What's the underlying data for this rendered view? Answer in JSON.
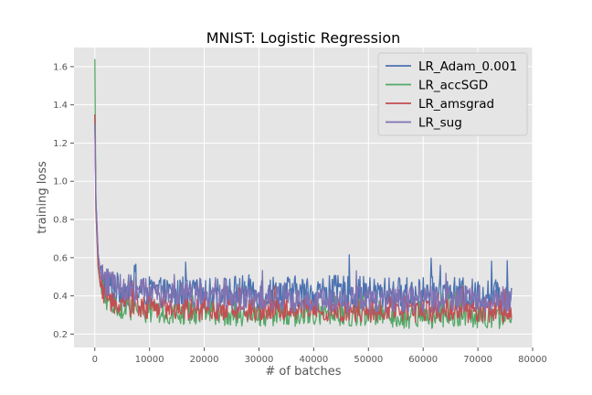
{
  "chart_data": {
    "type": "line",
    "title": "MNIST: Logistic Regression",
    "xlabel": "# of batches",
    "ylabel": "training loss",
    "xlim": [
      -3800,
      80000
    ],
    "ylim": [
      0.13,
      1.7
    ],
    "xticks": [
      0,
      10000,
      20000,
      30000,
      40000,
      50000,
      60000,
      70000,
      80000
    ],
    "yticks": [
      0.2,
      0.4,
      0.6,
      0.8,
      1.0,
      1.2,
      1.4,
      1.6
    ],
    "xtick_labels": [
      "0",
      "10000",
      "20000",
      "30000",
      "40000",
      "50000",
      "60000",
      "70000",
      "80000"
    ],
    "ytick_labels": [
      "0.2",
      "0.4",
      "0.6",
      "0.8",
      "1.0",
      "1.2",
      "1.4",
      "1.6"
    ],
    "grid": true,
    "legend_position": "top-right",
    "background": "#e5e5e5",
    "series": [
      {
        "name": "LR_Adam_0.001",
        "color": "#4c72b0",
        "x": [
          0,
          200,
          600,
          1000,
          2000,
          3000,
          5000,
          8000,
          10000,
          15000,
          20000,
          25000,
          30000,
          35000,
          40000,
          45000,
          50000,
          55000,
          60000,
          65000,
          70000,
          75000,
          76200
        ],
        "y": [
          1.35,
          0.9,
          0.62,
          0.52,
          0.46,
          0.44,
          0.43,
          0.42,
          0.42,
          0.41,
          0.41,
          0.42,
          0.42,
          0.42,
          0.41,
          0.42,
          0.41,
          0.41,
          0.41,
          0.41,
          0.4,
          0.4,
          0.38
        ],
        "spread": [
          0.0,
          0.08,
          0.1,
          0.1,
          0.1,
          0.09,
          0.09,
          0.08,
          0.08,
          0.08,
          0.08,
          0.09,
          0.09,
          0.09,
          0.09,
          0.09,
          0.09,
          0.09,
          0.09,
          0.09,
          0.09,
          0.09,
          0.08
        ]
      },
      {
        "name": "LR_accSGD",
        "color": "#55a868",
        "x": [
          0,
          200,
          600,
          1000,
          2000,
          3000,
          5000,
          8000,
          10000,
          15000,
          20000,
          25000,
          30000,
          35000,
          40000,
          45000,
          50000,
          55000,
          60000,
          65000,
          70000,
          75000,
          76200
        ],
        "y": [
          1.64,
          0.85,
          0.55,
          0.45,
          0.38,
          0.35,
          0.33,
          0.32,
          0.31,
          0.31,
          0.31,
          0.3,
          0.3,
          0.3,
          0.3,
          0.3,
          0.29,
          0.29,
          0.29,
          0.29,
          0.29,
          0.28,
          0.28
        ],
        "spread": [
          0.0,
          0.08,
          0.08,
          0.07,
          0.06,
          0.06,
          0.06,
          0.06,
          0.06,
          0.06,
          0.06,
          0.06,
          0.06,
          0.06,
          0.06,
          0.06,
          0.06,
          0.06,
          0.06,
          0.06,
          0.06,
          0.06,
          0.05
        ]
      },
      {
        "name": "LR_amsgrad",
        "color": "#c44e52",
        "x": [
          0,
          200,
          600,
          1000,
          2000,
          3000,
          5000,
          8000,
          10000,
          15000,
          20000,
          25000,
          30000,
          35000,
          40000,
          45000,
          50000,
          55000,
          60000,
          65000,
          70000,
          75000,
          76200
        ],
        "y": [
          1.35,
          0.85,
          0.56,
          0.46,
          0.4,
          0.37,
          0.35,
          0.34,
          0.34,
          0.33,
          0.33,
          0.33,
          0.33,
          0.33,
          0.33,
          0.32,
          0.32,
          0.32,
          0.32,
          0.32,
          0.32,
          0.32,
          0.31
        ],
        "spread": [
          0.0,
          0.08,
          0.08,
          0.07,
          0.07,
          0.07,
          0.06,
          0.06,
          0.06,
          0.06,
          0.06,
          0.06,
          0.06,
          0.06,
          0.06,
          0.06,
          0.06,
          0.06,
          0.06,
          0.06,
          0.06,
          0.06,
          0.05
        ]
      },
      {
        "name": "LR_sug",
        "color": "#8172b2",
        "x": [
          0,
          200,
          600,
          1000,
          2000,
          3000,
          5000,
          8000,
          10000,
          15000,
          20000,
          25000,
          30000,
          35000,
          40000,
          45000,
          50000,
          55000,
          60000,
          65000,
          70000,
          75000,
          76200
        ],
        "y": [
          1.3,
          0.9,
          0.62,
          0.53,
          0.47,
          0.45,
          0.44,
          0.43,
          0.42,
          0.41,
          0.4,
          0.38,
          0.38,
          0.38,
          0.38,
          0.38,
          0.38,
          0.38,
          0.38,
          0.38,
          0.38,
          0.38,
          0.36
        ],
        "spread": [
          0.0,
          0.08,
          0.09,
          0.09,
          0.09,
          0.08,
          0.08,
          0.07,
          0.07,
          0.07,
          0.07,
          0.07,
          0.07,
          0.07,
          0.07,
          0.07,
          0.07,
          0.07,
          0.07,
          0.07,
          0.07,
          0.07,
          0.06
        ]
      }
    ]
  }
}
